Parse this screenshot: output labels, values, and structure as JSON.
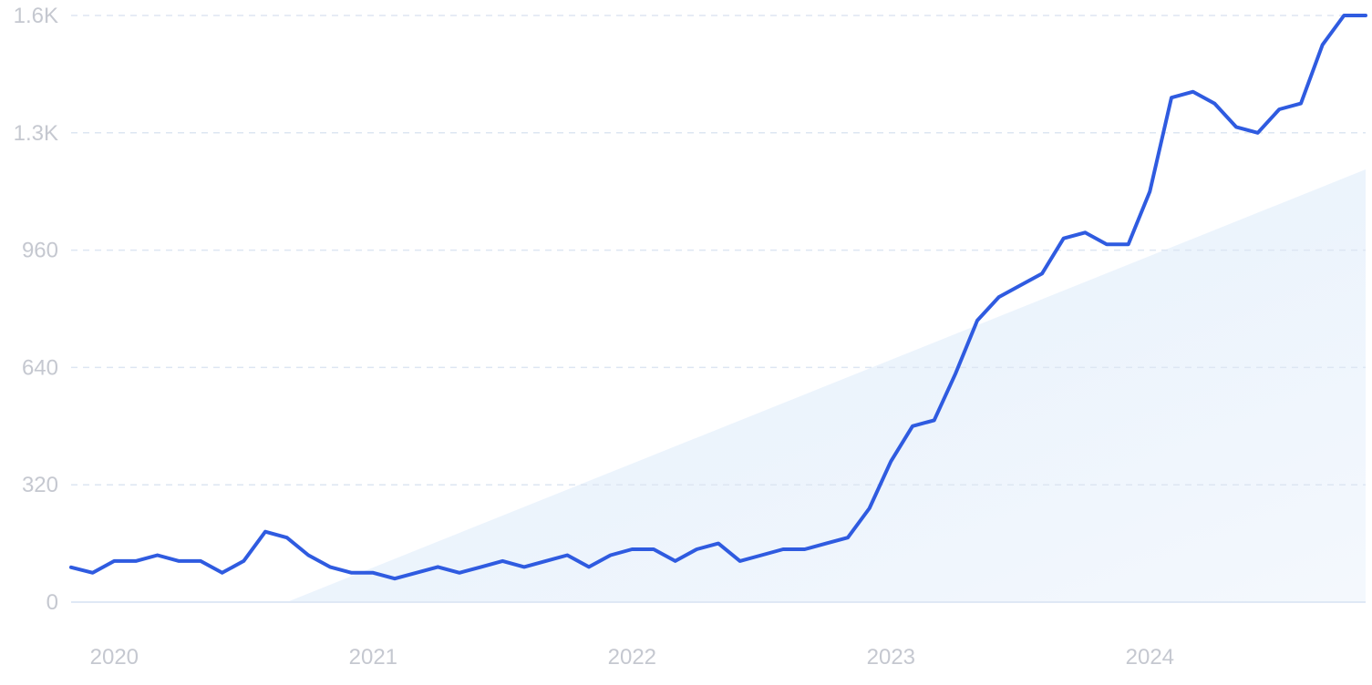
{
  "chart_data": {
    "type": "line",
    "title": "",
    "xlabel": "",
    "ylabel": "",
    "ylim": [
      0,
      1600
    ],
    "y_ticks": [
      {
        "value": 0,
        "label": "0"
      },
      {
        "value": 320,
        "label": "320"
      },
      {
        "value": 640,
        "label": "640"
      },
      {
        "value": 960,
        "label": "960"
      },
      {
        "value": 1280,
        "label": "1.3K"
      },
      {
        "value": 1600,
        "label": "1.6K"
      }
    ],
    "x_ticks": [
      {
        "value": "2020-01",
        "label": "2020"
      },
      {
        "value": "2021-01",
        "label": "2021"
      },
      {
        "value": "2022-01",
        "label": "2022"
      },
      {
        "value": "2023-01",
        "label": "2023"
      },
      {
        "value": "2024-01",
        "label": "2024"
      }
    ],
    "x_range": [
      "2019-11",
      "2024-11"
    ],
    "grid": true,
    "legend": "none",
    "colors": {
      "line": "#2f5be0",
      "trend_fill": "#e3effc",
      "grid": "#dde6f2",
      "tick_text": "#c5c8d0"
    },
    "trend": {
      "start": {
        "x": "2020-09",
        "y": 0
      },
      "end": {
        "x": "2024-11",
        "y": 1180
      }
    },
    "series": [
      {
        "name": "",
        "x": [
          "2019-11",
          "2019-12",
          "2020-01",
          "2020-02",
          "2020-03",
          "2020-04",
          "2020-05",
          "2020-06",
          "2020-07",
          "2020-08",
          "2020-09",
          "2020-10",
          "2020-11",
          "2020-12",
          "2021-01",
          "2021-02",
          "2021-03",
          "2021-04",
          "2021-05",
          "2021-06",
          "2021-07",
          "2021-08",
          "2021-09",
          "2021-10",
          "2021-11",
          "2021-12",
          "2022-01",
          "2022-02",
          "2022-03",
          "2022-04",
          "2022-05",
          "2022-06",
          "2022-07",
          "2022-08",
          "2022-09",
          "2022-10",
          "2022-11",
          "2022-12",
          "2023-01",
          "2023-02",
          "2023-03",
          "2023-04",
          "2023-05",
          "2023-06",
          "2023-07",
          "2023-08",
          "2023-09",
          "2023-10",
          "2023-11",
          "2023-12",
          "2024-01",
          "2024-02",
          "2024-03",
          "2024-04",
          "2024-05",
          "2024-06",
          "2024-07",
          "2024-08",
          "2024-09",
          "2024-10",
          "2024-11"
        ],
        "values": [
          95,
          80,
          112,
          112,
          128,
          112,
          112,
          80,
          112,
          192,
          176,
          128,
          96,
          80,
          80,
          64,
          80,
          96,
          80,
          96,
          112,
          96,
          112,
          128,
          96,
          128,
          144,
          144,
          112,
          144,
          160,
          112,
          128,
          144,
          144,
          160,
          176,
          256,
          384,
          480,
          496,
          624,
          768,
          832,
          864,
          896,
          992,
          1008,
          976,
          976,
          1120,
          1376,
          1392,
          1360,
          1296,
          1280,
          1344,
          1360,
          1520,
          1600,
          1600
        ]
      }
    ]
  }
}
